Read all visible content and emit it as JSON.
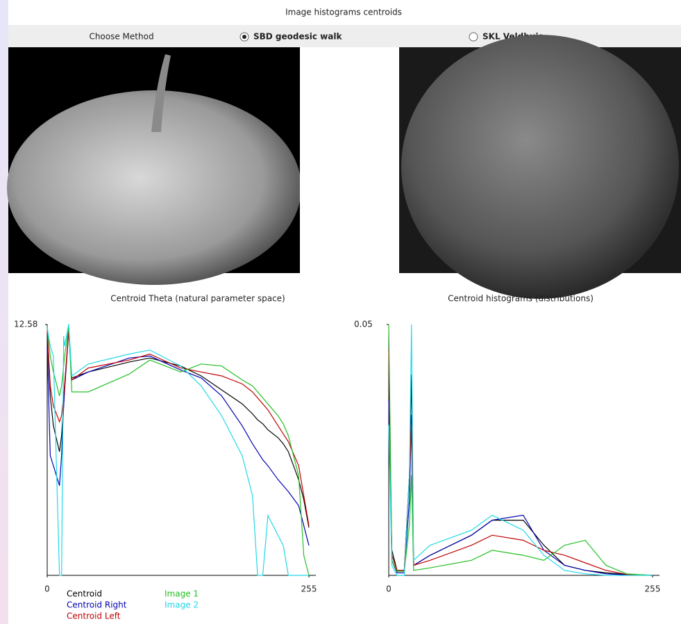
{
  "window": {
    "title": "Image histograms centroids"
  },
  "toolbar": {
    "label": "Choose Method",
    "options": [
      {
        "label": "SBD geodesic walk",
        "selected": true
      },
      {
        "label": "SKL Veldhuis",
        "selected": false
      }
    ]
  },
  "chart_data": [
    {
      "type": "line",
      "title": "Centroid Theta (natural parameter space)",
      "x": [
        0,
        3,
        6,
        12,
        14,
        16,
        17,
        21,
        24,
        40,
        80,
        100,
        130,
        150,
        170,
        190,
        200,
        205,
        210,
        215,
        225,
        230,
        235,
        245,
        250,
        255
      ],
      "xlim": [
        0,
        255
      ],
      "xticks": [
        0,
        255
      ],
      "ylim": [
        0,
        12.58
      ],
      "yticks": [
        12.58
      ],
      "series": [
        {
          "name": "Centroid",
          "color": "#000000",
          "values": [
            12.1,
            9.0,
            7.5,
            6.2,
            7,
            8.5,
            9.3,
            12.3,
            9.9,
            10.2,
            10.7,
            10.9,
            10.5,
            10.0,
            9.3,
            8.6,
            8.1,
            7.8,
            7.6,
            7.3,
            6.9,
            6.6,
            6.2,
            4.8,
            3.8,
            2.4
          ]
        },
        {
          "name": "Centroid Right",
          "color": "#0000b0",
          "values": [
            11.5,
            6.0,
            5.5,
            4.5,
            6,
            8.5,
            9.5,
            12.3,
            9.8,
            10.2,
            10.9,
            11.0,
            10.3,
            9.9,
            9.0,
            7.5,
            6.6,
            6.2,
            5.8,
            5.5,
            4.8,
            4.5,
            4.2,
            3.5,
            2.5,
            1.5
          ]
        },
        {
          "name": "Centroid Left",
          "color": "#c00000",
          "values": [
            12.3,
            9.5,
            8.5,
            7.7,
            8,
            9,
            9.6,
            12.3,
            9.8,
            10.4,
            10.8,
            11.1,
            10.4,
            10.2,
            10.0,
            9.6,
            9.2,
            8.9,
            8.6,
            8.3,
            7.5,
            7.1,
            6.7,
            5.5,
            4.0,
            2.5
          ]
        },
        {
          "name": "Image 1",
          "color": "#22c022",
          "values": [
            12.5,
            11,
            10.2,
            9.0,
            9.5,
            10.5,
            11,
            12.5,
            9.2,
            9.2,
            10.1,
            10.8,
            10.2,
            10.6,
            10.5,
            9.8,
            9.5,
            9.2,
            8.9,
            8.6,
            8.0,
            7.6,
            7.0,
            5.0,
            1.0,
            0
          ]
        },
        {
          "name": "Image 2",
          "color": "#20d8e8",
          "values": [
            12.4,
            11.5,
            11.0,
            0,
            0,
            12.0,
            11.5,
            12.6,
            10.0,
            10.6,
            11.1,
            11.3,
            10.5,
            9.5,
            8.0,
            6.0,
            4.0,
            0,
            0,
            3.0,
            2.0,
            1.5,
            0,
            0,
            0,
            0
          ]
        }
      ]
    },
    {
      "type": "line",
      "title": "Centroid histograms (distributions)",
      "x": [
        0,
        3,
        8,
        15,
        20,
        22,
        24,
        40,
        80,
        100,
        130,
        150,
        170,
        190,
        210,
        230,
        255
      ],
      "xlim": [
        0,
        255
      ],
      "xticks": [
        0,
        255
      ],
      "ylim": [
        0,
        0.05
      ],
      "yticks": [
        0.05
      ],
      "series": [
        {
          "color": "#000000",
          "values": [
            0.03,
            0.005,
            0.001,
            0.001,
            0.02,
            0.04,
            0.002,
            0.004,
            0.008,
            0.011,
            0.011,
            0.006,
            0.002,
            0.001,
            0.0005,
            0.0002,
            0
          ]
        },
        {
          "color": "#0000b0",
          "values": [
            0.035,
            0.003,
            0.0005,
            0.0005,
            0.015,
            0.032,
            0.002,
            0.004,
            0.008,
            0.011,
            0.012,
            0.005,
            0.002,
            0.001,
            0.0003,
            0.0001,
            0
          ]
        },
        {
          "color": "#c00000",
          "values": [
            0.045,
            0.004,
            0.001,
            0.001,
            0.02,
            0.03,
            0.002,
            0.003,
            0.006,
            0.008,
            0.007,
            0.005,
            0.004,
            0.0025,
            0.001,
            0.0002,
            0
          ]
        },
        {
          "color": "#22c022",
          "values": [
            0.05,
            0.003,
            0.0008,
            0.0008,
            0.01,
            0.02,
            0.001,
            0.0015,
            0.003,
            0.005,
            0.004,
            0.003,
            0.006,
            0.007,
            0.002,
            0.0003,
            0
          ]
        },
        {
          "color": "#20d8e8",
          "values": [
            0.03,
            0.002,
            0,
            0,
            0.02,
            0.05,
            0.003,
            0.006,
            0.009,
            0.012,
            0.009,
            0.004,
            0.001,
            0.0003,
            0,
            0,
            0
          ]
        }
      ]
    }
  ]
}
